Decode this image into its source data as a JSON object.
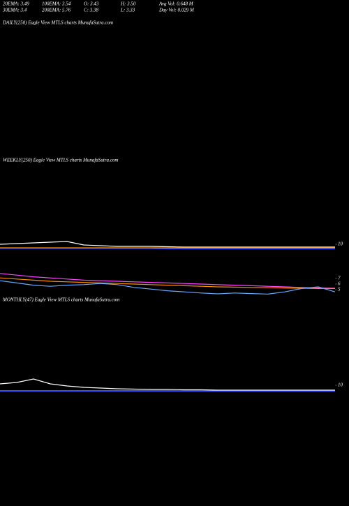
{
  "header": {
    "row1": [
      "20EMA: 3.49",
      "100EMA: 3.54",
      "O: 3.43",
      "H: 3.50",
      "Avg Vol: 0.648  M"
    ],
    "row2": [
      "30EMA: 3.4",
      "200EMA: 5.76",
      "C: 3.38",
      "L: 3.33",
      "Day Vol: 0.029 M"
    ]
  },
  "chart_data": [
    {
      "type": "line",
      "title": "DAILY(250) Eagle   View  MTLS charts MunafaSutra.com",
      "ylim": [
        0,
        20
      ],
      "yticks": [
        10
      ],
      "series": [
        {
          "color": "#ffffff",
          "values": [
            10,
            11,
            12,
            13,
            14,
            9,
            8,
            7,
            7,
            7,
            6.5,
            6,
            6,
            6,
            6,
            6,
            6,
            6,
            6,
            6,
            6
          ]
        },
        {
          "color": "#ff8c00",
          "values": [
            5,
            5,
            5,
            5,
            5,
            5,
            5,
            5,
            5,
            5,
            5,
            5,
            5,
            5,
            5,
            5,
            5,
            5,
            5,
            5,
            5
          ]
        },
        {
          "color": "#3355ff",
          "values": [
            4,
            4,
            4,
            4,
            4,
            4,
            4,
            4,
            4,
            4,
            3.5,
            3.5,
            3.5,
            3.5,
            3.5,
            3.5,
            3.5,
            3.5,
            3.5,
            3.5,
            3.5
          ]
        }
      ]
    },
    {
      "type": "line",
      "title": "WEEKLY(250) Eagle  View  MTLS charts MunafaSutra.com",
      "ylim": [
        3.75,
        8.75
      ],
      "yticks": [
        7,
        6,
        5
      ],
      "series": [
        {
          "color": "#ff44ff",
          "values": [
            7.9,
            7.6,
            7.3,
            7.1,
            6.9,
            6.7,
            6.6,
            6.5,
            6.4,
            6.3,
            6.2,
            6.1,
            6,
            5.9,
            5.8,
            5.7,
            5.6,
            5.5,
            5.4,
            5.3,
            5.25
          ]
        },
        {
          "color": "#ff8c00",
          "values": [
            7.1,
            6.9,
            6.7,
            6.5,
            6.4,
            6.3,
            6.2,
            6.1,
            6,
            5.9,
            5.8,
            5.7,
            5.6,
            5.5,
            5.45,
            5.4,
            5.35,
            5.3,
            5.25,
            5.2,
            5.2
          ]
        },
        {
          "color": "#66aaff",
          "values": [
            6.6,
            6.2,
            5.8,
            5.6,
            5.8,
            5.9,
            6.1,
            5.9,
            5.4,
            5.1,
            4.8,
            4.6,
            4.4,
            4.25,
            4.4,
            4.3,
            4.2,
            4.6,
            5.2,
            5.5,
            4.6
          ]
        }
      ]
    },
    {
      "type": "line",
      "title": "MONTHLY(47) Eagle  View MTLS charts MunafaSutra.com",
      "ylim": [
        0,
        20
      ],
      "yticks": [
        10
      ],
      "series": [
        {
          "color": "#ffffff",
          "values": [
            12,
            14,
            19,
            12,
            9,
            7,
            6,
            5,
            4.5,
            4,
            4,
            3.5,
            3.5,
            3,
            3,
            3,
            3,
            3,
            3,
            3,
            3
          ]
        },
        {
          "color": "#ff8c00",
          "values": [
            2,
            2,
            2,
            2,
            2,
            2,
            2,
            2,
            2,
            2,
            2,
            2,
            2,
            2,
            2,
            2,
            2,
            2,
            2,
            2,
            2
          ]
        },
        {
          "color": "#3355ff",
          "values": [
            1.5,
            1.5,
            1.5,
            1.5,
            1.5,
            1.5,
            1.5,
            1.5,
            1.5,
            1.5,
            1.5,
            1.5,
            1.5,
            1.5,
            1.5,
            1.5,
            1.5,
            1.5,
            1.5,
            1.5,
            1.5
          ]
        }
      ]
    }
  ]
}
